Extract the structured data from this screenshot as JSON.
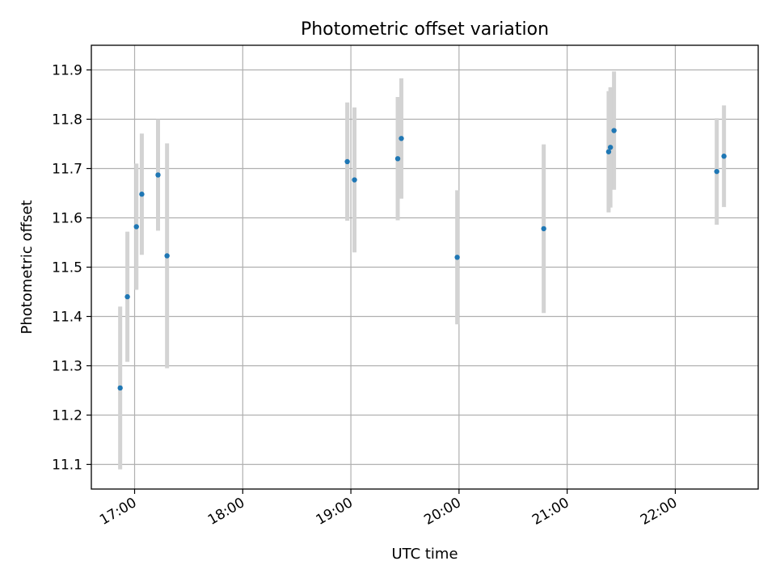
{
  "chart_data": {
    "type": "scatter",
    "title": "Photometric offset variation",
    "xlabel": "UTC time",
    "ylabel": "Photometric offset",
    "xlim": [
      "16:36",
      "22:46"
    ],
    "ylim": [
      11.05,
      11.95
    ],
    "x_ticks": [
      "17:00",
      "18:00",
      "19:00",
      "20:00",
      "21:00",
      "22:00"
    ],
    "y_ticks": [
      11.1,
      11.2,
      11.3,
      11.4,
      11.5,
      11.6,
      11.7,
      11.8,
      11.9
    ],
    "grid": true,
    "colors": {
      "point": "#1f77b4",
      "errorbar": "#d3d3d3"
    },
    "points": [
      {
        "x": "16:52",
        "y": 11.255,
        "err": 0.165
      },
      {
        "x": "16:56",
        "y": 11.44,
        "err": 0.132
      },
      {
        "x": "17:01",
        "y": 11.582,
        "err": 0.128
      },
      {
        "x": "17:04",
        "y": 11.648,
        "err": 0.123
      },
      {
        "x": "17:13",
        "y": 11.687,
        "err": 0.113
      },
      {
        "x": "17:18",
        "y": 11.523,
        "err": 0.228
      },
      {
        "x": "18:58",
        "y": 11.714,
        "err": 0.12
      },
      {
        "x": "19:02",
        "y": 11.677,
        "err": 0.147
      },
      {
        "x": "19:26",
        "y": 11.72,
        "err": 0.125
      },
      {
        "x": "19:28",
        "y": 11.761,
        "err": 0.122
      },
      {
        "x": "19:59",
        "y": 11.52,
        "err": 0.136
      },
      {
        "x": "20:47",
        "y": 11.578,
        "err": 0.171
      },
      {
        "x": "21:23",
        "y": 11.734,
        "err": 0.123
      },
      {
        "x": "21:24",
        "y": 11.743,
        "err": 0.122
      },
      {
        "x": "21:26",
        "y": 11.777,
        "err": 0.12
      },
      {
        "x": "22:23",
        "y": 11.694,
        "err": 0.108
      },
      {
        "x": "22:27",
        "y": 11.725,
        "err": 0.103
      }
    ]
  }
}
